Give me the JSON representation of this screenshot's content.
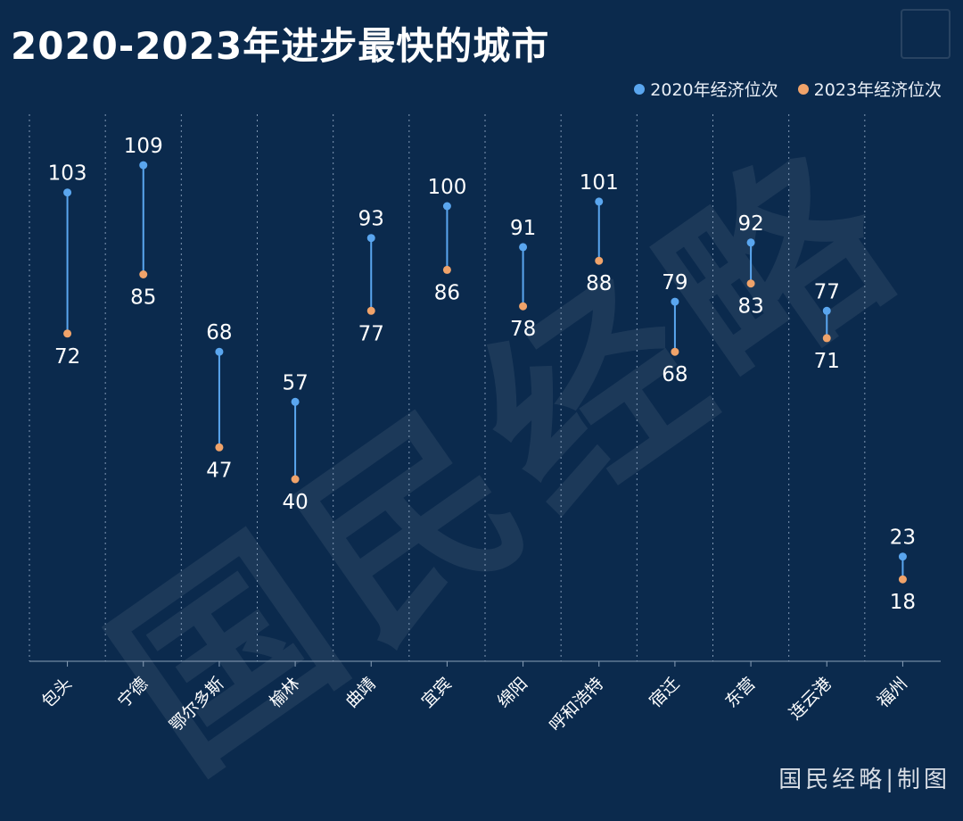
{
  "title": "2020-2023年进步最快的城市",
  "legend": {
    "items": [
      {
        "label": "2020年经济位次",
        "color": "#5aa6ef"
      },
      {
        "label": "2023年经济位次",
        "color": "#f0a36a"
      }
    ]
  },
  "watermark": "国民经略",
  "credit": "国民经略|制图",
  "chart_data": {
    "type": "dumbbell",
    "categories": [
      "包头",
      "宁德",
      "鄂尔多斯",
      "榆林",
      "曲靖",
      "宜宾",
      "绵阳",
      "呼和浩特",
      "宿迁",
      "东营",
      "连云港",
      "福州"
    ],
    "series": [
      {
        "name": "2020年经济位次",
        "color": "#5aa6ef",
        "values": [
          103,
          109,
          68,
          57,
          93,
          100,
          91,
          101,
          79,
          92,
          77,
          23
        ]
      },
      {
        "name": "2023年经济位次",
        "color": "#f0a36a",
        "values": [
          72,
          85,
          47,
          40,
          77,
          86,
          78,
          88,
          68,
          83,
          71,
          18
        ]
      }
    ],
    "ylim": [
      0,
      130
    ],
    "grid": "vertical-dotted",
    "legend_position": "top-right"
  }
}
